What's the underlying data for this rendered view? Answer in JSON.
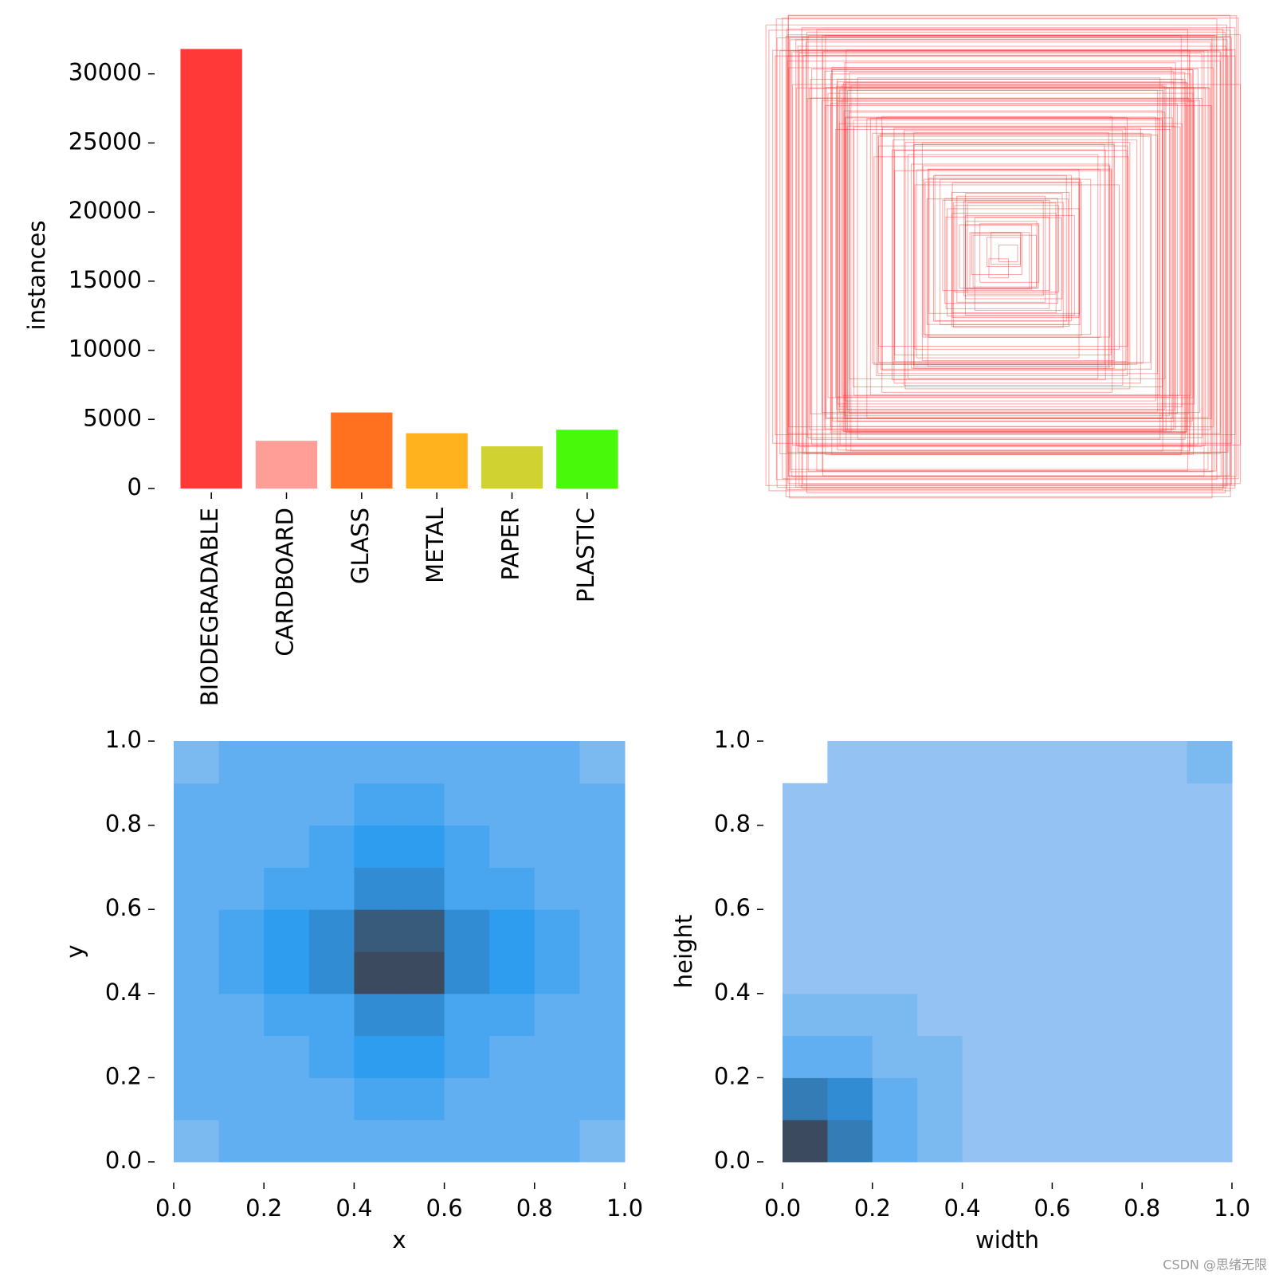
{
  "chart_data": [
    {
      "type": "bar",
      "y_label": "instances",
      "categories": [
        "BIODEGRADABLE",
        "CARDBOARD",
        "GLASS",
        "METAL",
        "PAPER",
        "PLASTIC"
      ],
      "values": [
        31800,
        3450,
        5500,
        4000,
        3050,
        4250
      ],
      "colors": [
        "#ff3838",
        "#ff9d97",
        "#ff701f",
        "#ffb21d",
        "#cfd231",
        "#48f90a"
      ],
      "ylim": [
        0,
        32000
      ],
      "yticks": [
        0,
        5000,
        10000,
        15000,
        20000,
        25000,
        30000
      ]
    },
    {
      "type": "heatmap",
      "x_label": "x",
      "y_label": "y",
      "xlim": [
        0,
        1
      ],
      "ylim": [
        0,
        1
      ],
      "xticks": [
        {
          "value": 0,
          "label": "0.0"
        },
        0.2,
        0.4,
        0.6,
        0.8,
        {
          "value": 1,
          "label": "1.0"
        }
      ],
      "yticks": [
        {
          "value": 0,
          "label": "0.0"
        },
        0.2,
        0.4,
        0.6,
        0.8,
        {
          "value": 1,
          "label": "1.0"
        }
      ],
      "cmap": [
        "#aecbf2",
        "#2e9df0",
        "#3b4a5e"
      ],
      "z": [
        [
          2,
          3,
          3,
          3,
          3,
          3,
          3,
          3,
          3,
          2
        ],
        [
          3,
          3,
          3,
          3,
          4,
          4,
          3,
          3,
          3,
          3
        ],
        [
          3,
          3,
          3,
          4,
          5,
          5,
          4,
          3,
          3,
          3
        ],
        [
          3,
          3,
          4,
          4,
          6,
          6,
          4,
          4,
          3,
          3
        ],
        [
          3,
          4,
          5,
          6,
          10,
          10,
          6,
          5,
          4,
          3
        ],
        [
          3,
          4,
          5,
          6,
          9,
          9,
          6,
          5,
          4,
          3
        ],
        [
          3,
          3,
          4,
          4,
          6,
          6,
          4,
          4,
          3,
          3
        ],
        [
          3,
          3,
          3,
          4,
          5,
          5,
          4,
          3,
          3,
          3
        ],
        [
          3,
          3,
          3,
          3,
          4,
          4,
          3,
          3,
          3,
          3
        ],
        [
          2,
          3,
          3,
          3,
          3,
          3,
          3,
          3,
          3,
          2
        ]
      ]
    },
    {
      "type": "heatmap",
      "x_label": "width",
      "y_label": "height",
      "xlim": [
        0,
        1
      ],
      "ylim": [
        0,
        1
      ],
      "xticks": [
        {
          "value": 0,
          "label": "0.0"
        },
        0.2,
        0.4,
        0.6,
        0.8,
        {
          "value": 1,
          "label": "1.0"
        }
      ],
      "yticks": [
        {
          "value": 0,
          "label": "0.0"
        },
        0.2,
        0.4,
        0.6,
        0.8,
        {
          "value": 1,
          "label": "1.0"
        }
      ],
      "cmap": [
        "#aecbf2",
        "#2e9df0",
        "#3b4a5e"
      ],
      "z": [
        [
          10,
          7,
          3,
          2,
          1,
          1,
          1,
          1,
          1,
          1
        ],
        [
          7,
          6,
          3,
          2,
          1,
          1,
          1,
          1,
          1,
          1
        ],
        [
          3,
          3,
          2,
          2,
          1,
          1,
          1,
          1,
          1,
          1
        ],
        [
          2,
          2,
          2,
          1,
          1,
          1,
          1,
          1,
          1,
          1
        ],
        [
          1,
          1,
          1,
          1,
          1,
          1,
          1,
          1,
          1,
          1
        ],
        [
          1,
          1,
          1,
          1,
          1,
          1,
          1,
          1,
          1,
          1
        ],
        [
          1,
          1,
          1,
          1,
          1,
          1,
          1,
          1,
          1,
          1
        ],
        [
          1,
          1,
          1,
          1,
          1,
          1,
          1,
          1,
          1,
          1
        ],
        [
          1,
          1,
          1,
          1,
          1,
          1,
          1,
          1,
          1,
          1
        ],
        [
          0,
          1,
          1,
          1,
          1,
          1,
          1,
          1,
          1,
          2
        ]
      ]
    }
  ],
  "watermark": "CSDN @思绪无限"
}
